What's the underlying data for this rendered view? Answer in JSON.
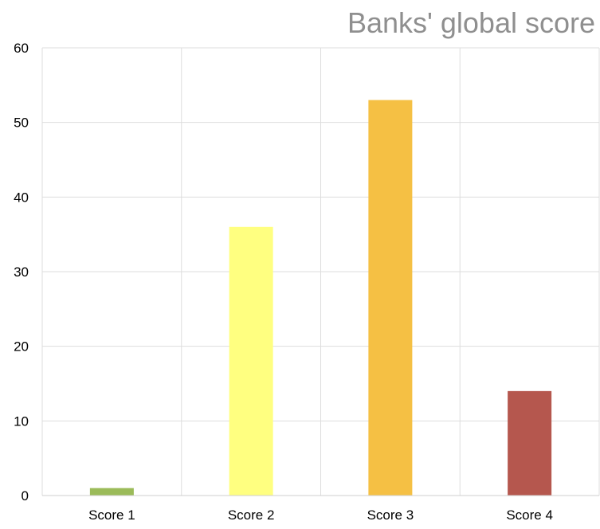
{
  "chart_data": {
    "type": "bar",
    "title": "Banks' global score",
    "xlabel": "",
    "ylabel": "",
    "categories": [
      "Score 1",
      "Score 2",
      "Score 3",
      "Score 4"
    ],
    "values": [
      1,
      36,
      53,
      14
    ],
    "colors": [
      "#9bbb59",
      "#ffff80",
      "#f5c044",
      "#b5574e"
    ],
    "ylim": [
      0,
      60
    ],
    "yticks": [
      0,
      10,
      20,
      30,
      40,
      50,
      60
    ],
    "grid": true,
    "legend": "none"
  },
  "style": {
    "grid_color": "#dddddd",
    "axis_label_color": "#000000",
    "title_color": "#8f8f8f"
  }
}
